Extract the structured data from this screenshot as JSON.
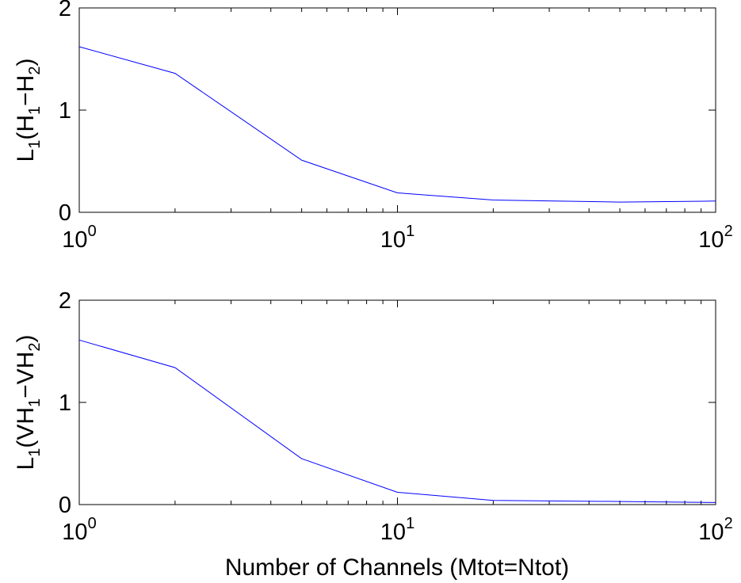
{
  "colors": {
    "series": "#0000ff",
    "axes": "#000000",
    "background": "#ffffff"
  },
  "chart_data": [
    {
      "type": "line",
      "xscale": "log",
      "xlim": [
        1,
        100
      ],
      "ylim": [
        0,
        2
      ],
      "grid": false,
      "x": [
        1,
        2,
        5,
        10,
        20,
        50,
        100
      ],
      "series": [
        {
          "values": [
            1.62,
            1.36,
            0.51,
            0.19,
            0.12,
            0.1,
            0.11
          ]
        }
      ],
      "xticks": [
        {
          "value": 1,
          "base": "10",
          "exp": "0"
        },
        {
          "value": 10,
          "base": "10",
          "exp": "1"
        },
        {
          "value": 100,
          "base": "10",
          "exp": "2"
        }
      ],
      "yticks": [
        {
          "value": 0,
          "label": "0"
        },
        {
          "value": 1,
          "label": "1"
        },
        {
          "value": 2,
          "label": "2"
        }
      ],
      "ylabel": {
        "base": "L",
        "sub": "1",
        "open": "(H",
        "sub2": "1",
        "mid": "−H",
        "sub3": "2",
        "close": ")"
      },
      "xlabel": ""
    },
    {
      "type": "line",
      "xscale": "log",
      "xlim": [
        1,
        100
      ],
      "ylim": [
        0,
        2
      ],
      "grid": false,
      "x": [
        1,
        2,
        5,
        10,
        20,
        50,
        100
      ],
      "series": [
        {
          "values": [
            1.61,
            1.34,
            0.45,
            0.12,
            0.04,
            0.03,
            0.02
          ]
        }
      ],
      "xticks": [
        {
          "value": 1,
          "base": "10",
          "exp": "0"
        },
        {
          "value": 10,
          "base": "10",
          "exp": "1"
        },
        {
          "value": 100,
          "base": "10",
          "exp": "2"
        }
      ],
      "yticks": [
        {
          "value": 0,
          "label": "0"
        },
        {
          "value": 1,
          "label": "1"
        },
        {
          "value": 2,
          "label": "2"
        }
      ],
      "ylabel": {
        "base": "L",
        "sub": "1",
        "open": "(VH",
        "sub2": "1",
        "mid": "−VH",
        "sub3": "2",
        "close": ")"
      },
      "xlabel": "Number of Channels (Mtot=Ntot)"
    }
  ]
}
